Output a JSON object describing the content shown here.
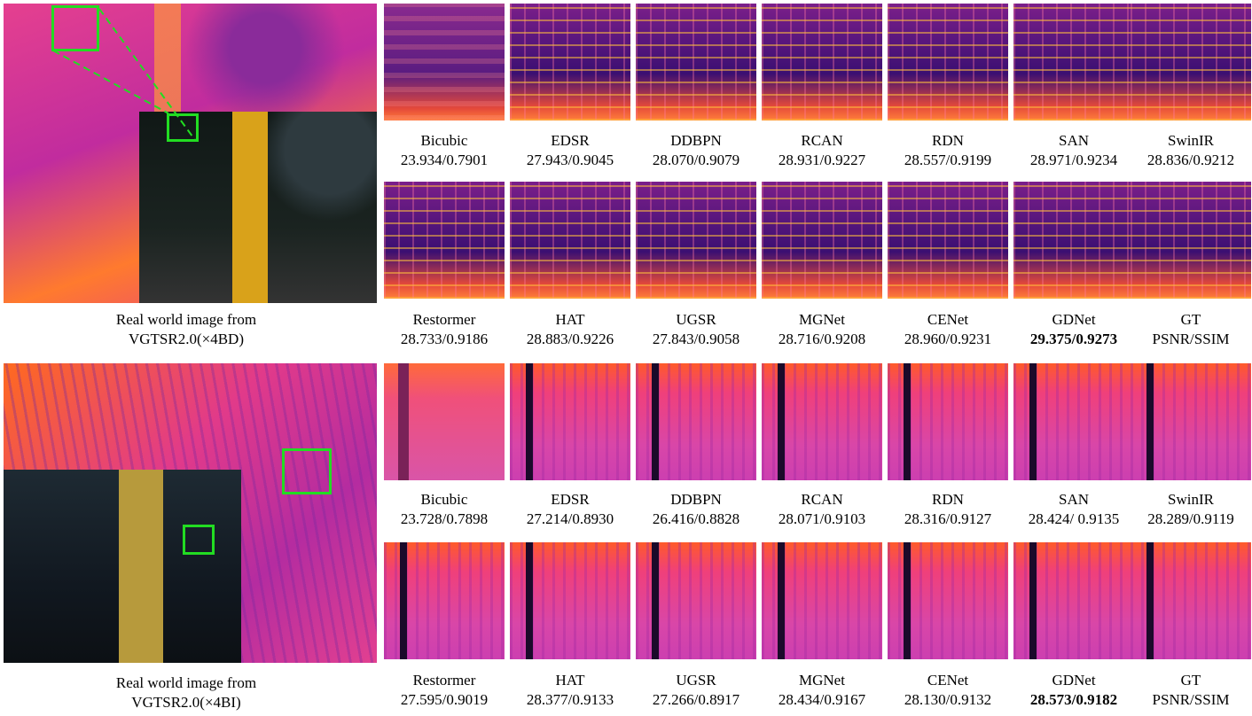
{
  "panel_top": {
    "caption_line1": "Real world image from",
    "caption_line2": "VGTSR2.0(×4BD)",
    "row1": [
      {
        "name": "Bicubic",
        "score": "23.934/0.7901",
        "bold": false
      },
      {
        "name": "EDSR",
        "score": "27.943/0.9045",
        "bold": false
      },
      {
        "name": "DDBPN",
        "score": "28.070/0.9079",
        "bold": false
      },
      {
        "name": "RCAN",
        "score": "28.931/0.9227",
        "bold": false
      },
      {
        "name": "RDN",
        "score": "28.557/0.9199",
        "bold": false
      },
      {
        "name": "SAN",
        "score": "28.971/0.9234",
        "bold": false
      },
      {
        "name": "SwinIR",
        "score": "28.836/0.9212",
        "bold": false
      }
    ],
    "row2": [
      {
        "name": "Restormer",
        "score": "28.733/0.9186",
        "bold": false
      },
      {
        "name": "HAT",
        "score": "28.883/0.9226",
        "bold": false
      },
      {
        "name": "UGSR",
        "score": "27.843/0.9058",
        "bold": false
      },
      {
        "name": "MGNet",
        "score": "28.716/0.9208",
        "bold": false
      },
      {
        "name": "CENet",
        "score": "28.960/0.9231",
        "bold": false
      },
      {
        "name": "GDNet",
        "score": "29.375/0.9273",
        "bold": true
      },
      {
        "name": "GT",
        "score": "PSNR/SSIM",
        "bold": false
      }
    ]
  },
  "panel_bottom": {
    "caption_line1": "Real world image from",
    "caption_line2": "VGTSR2.0(×4BI)",
    "row1": [
      {
        "name": "Bicubic",
        "score": "23.728/0.7898",
        "bold": false
      },
      {
        "name": "EDSR",
        "score": "27.214/0.8930",
        "bold": false
      },
      {
        "name": "DDBPN",
        "score": "26.416/0.8828",
        "bold": false
      },
      {
        "name": "RCAN",
        "score": "28.071/0.9103",
        "bold": false
      },
      {
        "name": "RDN",
        "score": "28.316/0.9127",
        "bold": false
      },
      {
        "name": "SAN",
        "score": "28.424/ 0.9135",
        "bold": false
      },
      {
        "name": "SwinIR",
        "score": "28.289/0.9119",
        "bold": false
      }
    ],
    "row2": [
      {
        "name": "Restormer",
        "score": "27.595/0.9019",
        "bold": false
      },
      {
        "name": "HAT",
        "score": "28.377/0.9133",
        "bold": false
      },
      {
        "name": "UGSR",
        "score": "27.266/0.8917",
        "bold": false
      },
      {
        "name": "MGNet",
        "score": "28.434/0.9167",
        "bold": false
      },
      {
        "name": "CENet",
        "score": "28.130/0.9132",
        "bold": false
      },
      {
        "name": "GDNet",
        "score": "28.573/0.9182",
        "bold": true
      },
      {
        "name": "GT",
        "score": "PSNR/SSIM",
        "bold": false
      }
    ]
  },
  "colors": {
    "highlight_box": "#22dd22",
    "thermal_bg": "#e03a86"
  }
}
